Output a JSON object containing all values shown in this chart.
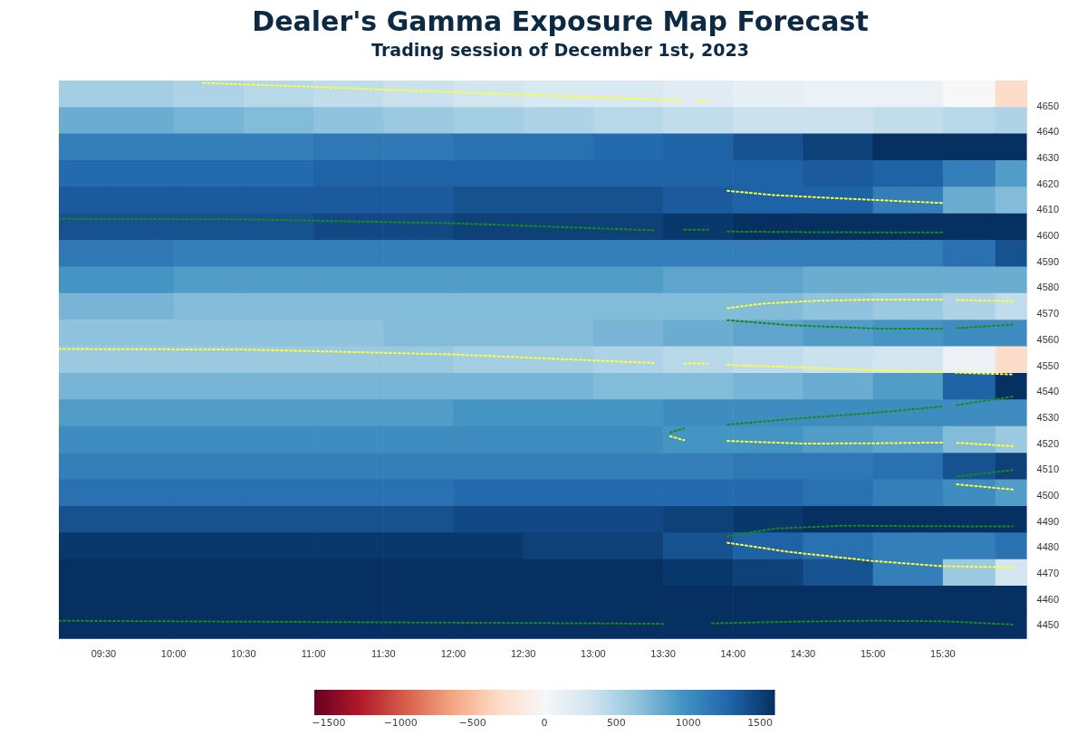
{
  "chart_data": {
    "type": "heatmap",
    "title": "Dealer's Gamma Exposure Map Forecast",
    "subtitle": "Trading session of December 1st, 2023",
    "x": [
      9.25,
      9.75,
      10.25,
      10.75,
      11.25,
      11.75,
      12.25,
      12.75,
      13.25,
      13.75,
      14.25,
      14.75,
      15.25,
      15.75,
      16.0
    ],
    "cells": [
      [
        550,
        550,
        500,
        450,
        400,
        350,
        300,
        250,
        250,
        200,
        150,
        100,
        100,
        0,
        -300
      ],
      [
        800,
        800,
        750,
        700,
        650,
        600,
        550,
        500,
        450,
        400,
        350,
        350,
        400,
        450,
        500
      ],
      [
        1100,
        1100,
        1100,
        1100,
        1150,
        1150,
        1200,
        1200,
        1250,
        1300,
        1400,
        1500,
        1600,
        1600,
        1600
      ],
      [
        1250,
        1250,
        1250,
        1250,
        1300,
        1300,
        1300,
        1300,
        1300,
        1300,
        1300,
        1350,
        1300,
        1100,
        900
      ],
      [
        1350,
        1350,
        1350,
        1350,
        1350,
        1350,
        1400,
        1400,
        1400,
        1350,
        1300,
        1300,
        1100,
        800,
        700
      ],
      [
        1400,
        1400,
        1400,
        1400,
        1450,
        1450,
        1500,
        1500,
        1500,
        1550,
        1600,
        1600,
        1600,
        1600,
        1600
      ],
      [
        1150,
        1150,
        1100,
        1100,
        1100,
        1100,
        1100,
        1100,
        1100,
        1100,
        1100,
        1100,
        1100,
        1200,
        1400
      ],
      [
        950,
        950,
        900,
        900,
        900,
        900,
        900,
        900,
        900,
        850,
        850,
        800,
        800,
        800,
        800
      ],
      [
        750,
        750,
        700,
        700,
        700,
        700,
        700,
        700,
        700,
        700,
        700,
        650,
        600,
        500,
        400
      ],
      [
        650,
        650,
        650,
        650,
        650,
        700,
        700,
        700,
        750,
        800,
        850,
        900,
        950,
        1000,
        1000
      ],
      [
        600,
        600,
        600,
        600,
        600,
        600,
        550,
        550,
        500,
        450,
        400,
        350,
        300,
        100,
        -300
      ],
      [
        750,
        750,
        750,
        750,
        750,
        750,
        750,
        750,
        700,
        700,
        750,
        800,
        900,
        1300,
        1600
      ],
      [
        900,
        900,
        900,
        900,
        900,
        900,
        950,
        950,
        950,
        1000,
        1000,
        1000,
        1000,
        1000,
        1000
      ],
      [
        1000,
        1000,
        1000,
        1000,
        1000,
        1000,
        1000,
        1000,
        1000,
        950,
        950,
        900,
        850,
        700,
        600
      ],
      [
        1100,
        1100,
        1100,
        1100,
        1100,
        1100,
        1100,
        1100,
        1100,
        1100,
        1150,
        1150,
        1200,
        1400,
        1500
      ],
      [
        1200,
        1200,
        1200,
        1200,
        1200,
        1200,
        1250,
        1250,
        1250,
        1250,
        1250,
        1200,
        1100,
        1000,
        900
      ],
      [
        1400,
        1400,
        1400,
        1400,
        1400,
        1400,
        1450,
        1450,
        1450,
        1500,
        1550,
        1600,
        1600,
        1600,
        1600
      ],
      [
        1550,
        1550,
        1550,
        1550,
        1550,
        1550,
        1550,
        1500,
        1500,
        1400,
        1300,
        1200,
        1100,
        1100,
        1200
      ],
      [
        1600,
        1600,
        1600,
        1600,
        1600,
        1600,
        1600,
        1600,
        1600,
        1550,
        1500,
        1400,
        1100,
        600,
        300
      ],
      [
        1600,
        1600,
        1600,
        1600,
        1600,
        1600,
        1600,
        1600,
        1600,
        1600,
        1600,
        1600,
        1600,
        1600,
        1600
      ],
      [
        1600,
        1600,
        1600,
        1600,
        1600,
        1600,
        1600,
        1600,
        1600,
        1600,
        1600,
        1600,
        1600,
        1600,
        1600
      ]
    ],
    "clim": [
      -1600,
      1600
    ],
    "cticks": [
      {
        "value": -1500,
        "label": "−1500"
      },
      {
        "value": -1000,
        "label": "−1000"
      },
      {
        "value": -500,
        "label": "−500"
      },
      0,
      500,
      1000,
      1500
    ],
    "xlim": [
      9.18,
      16.1
    ],
    "xticks": [
      {
        "value": 9.5,
        "label": "09:30"
      },
      {
        "value": 10,
        "label": "10:00"
      },
      {
        "value": 10.5,
        "label": "10:30"
      },
      {
        "value": 11,
        "label": "11:00"
      },
      {
        "value": 11.5,
        "label": "11:30"
      },
      {
        "value": 12,
        "label": "12:00"
      },
      {
        "value": 12.5,
        "label": "12:30"
      },
      {
        "value": 13,
        "label": "13:00"
      },
      {
        "value": 13.5,
        "label": "13:30"
      },
      {
        "value": 14,
        "label": "14:00"
      },
      {
        "value": 14.5,
        "label": "14:30"
      },
      {
        "value": 15,
        "label": "15:00"
      },
      {
        "value": 15.5,
        "label": "15:30"
      }
    ],
    "ylim": [
      4445,
      4660
    ],
    "yticks": [
      4450,
      4460,
      4470,
      4480,
      4490,
      4500,
      4510,
      4520,
      4530,
      4540,
      4550,
      4560,
      4570,
      4580,
      4590,
      4600,
      4610,
      4620,
      4630,
      4640,
      4650
    ],
    "line_style": "dotted",
    "marker": "none",
    "grid": false,
    "legend": false,
    "series": [
      {
        "type": "line",
        "color": "#ffff33",
        "x": [
          10.21,
          11.0,
          12.0,
          13.0,
          13.64,
          13.7,
          13.75,
          13.82
        ],
        "values": [
          4659,
          4657.5,
          4655.5,
          4653.5,
          4652.4,
          null,
          4652.2,
          4652.2
        ]
      },
      {
        "type": "line",
        "color": "#1a8a1a",
        "x": [
          9.18,
          10.5,
          12.0,
          13.43,
          13.55,
          13.65,
          13.82,
          13.9,
          13.96,
          14.5,
          15.0,
          15.5
        ],
        "values": [
          4606.7,
          4606.5,
          4605,
          4602.3,
          null,
          4602.5,
          4602.5,
          null,
          4601.8,
          4601.6,
          4601.5,
          4601.5
        ]
      },
      {
        "type": "line",
        "color": "#ffff33",
        "x": [
          9.18,
          10.5,
          12.0,
          13.43,
          13.55,
          13.65,
          13.82,
          13.9,
          13.96,
          14.5,
          15.0,
          15.5,
          15.55,
          15.59,
          16.01
        ],
        "values": [
          4556.6,
          4556.4,
          4554.5,
          4551.2,
          null,
          4551,
          4551,
          null,
          4550.5,
          4549.5,
          4548.5,
          4547.8,
          null,
          4547.5,
          4546.8
        ]
      },
      {
        "type": "line",
        "color": "#1a8a1a",
        "x": [
          9.18,
          11.0,
          13.0,
          13.5,
          13.7,
          13.85,
          14.5,
          15.0,
          15.5,
          16.01
        ],
        "values": [
          4452,
          4451.5,
          4451,
          4450.8,
          null,
          4451,
          4451.7,
          4452,
          4451.8,
          4450.5
        ]
      },
      {
        "type": "line",
        "color": "#ffff33",
        "x": [
          13.96,
          14.3,
          14.8,
          15.2,
          15.5
        ],
        "values": [
          4617.5,
          4615.8,
          4614.5,
          4613.5,
          4612.8
        ]
      },
      {
        "type": "line",
        "color": "#ffff33",
        "x": [
          13.96,
          14.2,
          14.6,
          15.0,
          15.5,
          15.55,
          15.6,
          16.0
        ],
        "values": [
          4572.3,
          4574,
          4575.2,
          4575.6,
          4575.6,
          null,
          4575.5,
          4575
        ]
      },
      {
        "type": "line",
        "color": "#1a8a1a",
        "x": [
          13.96,
          14.4,
          15.0,
          15.5,
          15.55,
          15.6,
          16.0
        ],
        "values": [
          4567.7,
          4565.8,
          4564.5,
          4564.4,
          null,
          4564.6,
          4566
        ]
      },
      {
        "type": "line",
        "color": "#1a8a1a",
        "x": [
          13.55,
          13.65,
          13.8,
          13.96,
          14.5,
          15.0,
          15.5,
          15.55,
          15.6,
          16.0
        ],
        "values": [
          4524.5,
          4526,
          null,
          4527.5,
          4530,
          4532,
          4534.5,
          null,
          4535,
          4538.3
        ]
      },
      {
        "type": "line",
        "color": "#ffff33",
        "x": [
          13.55,
          13.65,
          13.8,
          13.96,
          14.5,
          15.0,
          15.5,
          15.55,
          15.6,
          16.0
        ],
        "values": [
          4523,
          4521.5,
          null,
          4521.2,
          4520.2,
          4520.3,
          4520.6,
          null,
          4520.5,
          4519.2
        ]
      },
      {
        "type": "line",
        "color": "#1a8a1a",
        "x": [
          15.6,
          16.0
        ],
        "values": [
          4507.5,
          4510
        ]
      },
      {
        "type": "line",
        "color": "#ffff33",
        "x": [
          15.6,
          16.0
        ],
        "values": [
          4504.5,
          4502.5
        ]
      },
      {
        "type": "line",
        "color": "#1a8a1a",
        "x": [
          13.96,
          14.3,
          14.8,
          15.3,
          16.0
        ],
        "values": [
          4484.5,
          4487.5,
          4488.6,
          4488.4,
          4488.3
        ]
      },
      {
        "type": "line",
        "color": "#ffff33",
        "x": [
          13.96,
          14.4,
          15.0,
          15.5,
          16.0
        ],
        "values": [
          4482,
          4478.5,
          4475,
          4473,
          4472.5
        ]
      }
    ]
  }
}
